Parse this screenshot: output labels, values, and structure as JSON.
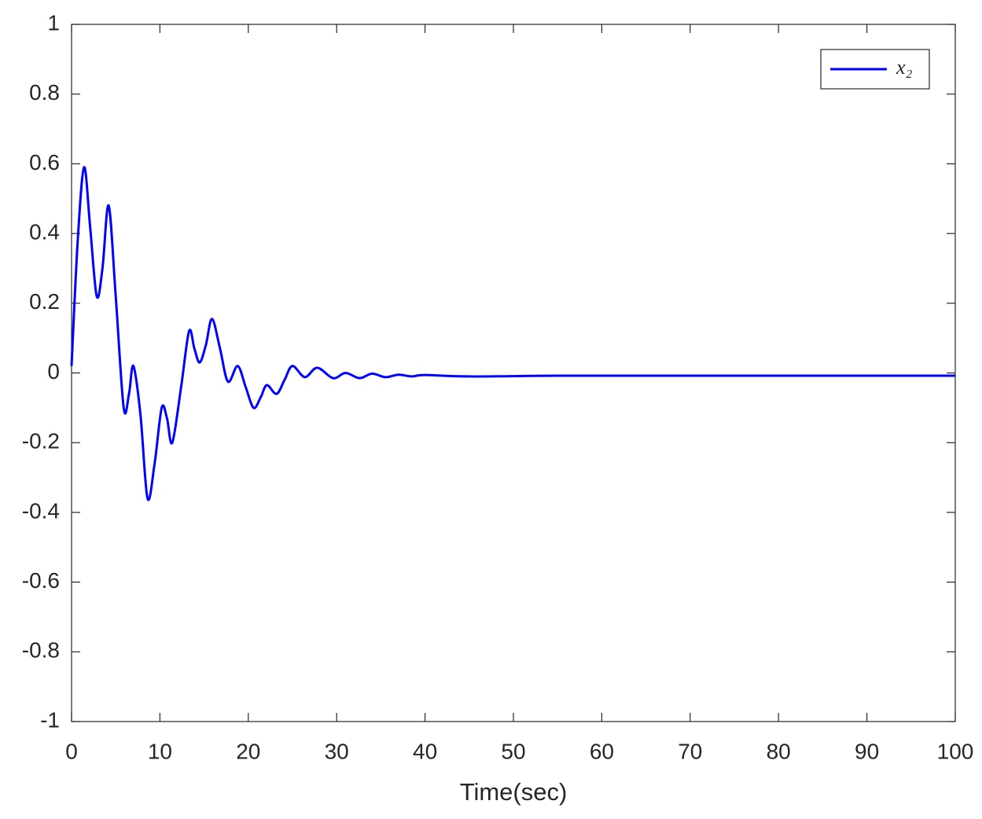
{
  "chart_data": {
    "type": "line",
    "x_label": "Time(sec)",
    "x": [
      0,
      0.7,
      1.42,
      2.1,
      2.85,
      3.5,
      4.2,
      5.0,
      5.9,
      6.5,
      7.0,
      7.8,
      8.6,
      9.4,
      10.2,
      10.8,
      11.4,
      12.4,
      13.3,
      13.9,
      14.5,
      15.2,
      15.9,
      16.8,
      17.7,
      18.8,
      19.7,
      20.6,
      21.4,
      22.1,
      23.2,
      24.1,
      25.0,
      26.4,
      27.8,
      29.6,
      31.0,
      32.6,
      34.0,
      35.5,
      37.0,
      38.5,
      40.0,
      45.0,
      55.0,
      70.0,
      85.0,
      100.0
    ],
    "series": [
      {
        "name": "x₂",
        "color": "#0000ff",
        "values": [
          0.02,
          0.38,
          0.59,
          0.42,
          0.22,
          0.3,
          0.48,
          0.22,
          -0.1,
          -0.06,
          0.02,
          -0.12,
          -0.36,
          -0.26,
          -0.1,
          -0.13,
          -0.2,
          -0.04,
          0.12,
          0.07,
          0.03,
          0.08,
          0.155,
          0.07,
          -0.025,
          0.02,
          -0.04,
          -0.1,
          -0.07,
          -0.035,
          -0.06,
          -0.02,
          0.02,
          -0.012,
          0.015,
          -0.015,
          0.0,
          -0.015,
          -0.002,
          -0.012,
          -0.005,
          -0.01,
          -0.006,
          -0.01,
          -0.008,
          -0.008,
          -0.008,
          -0.008
        ]
      }
    ],
    "xlim": [
      0,
      100
    ],
    "xticks": [
      0,
      10,
      20,
      30,
      40,
      50,
      60,
      70,
      80,
      90,
      100
    ],
    "ylim": [
      -1,
      1
    ],
    "yticks": [
      -1,
      -0.8,
      -0.6,
      -0.4,
      -0.2,
      0,
      0.2,
      0.4,
      0.6,
      0.8,
      1
    ],
    "grid": false,
    "legend": "northeast"
  }
}
